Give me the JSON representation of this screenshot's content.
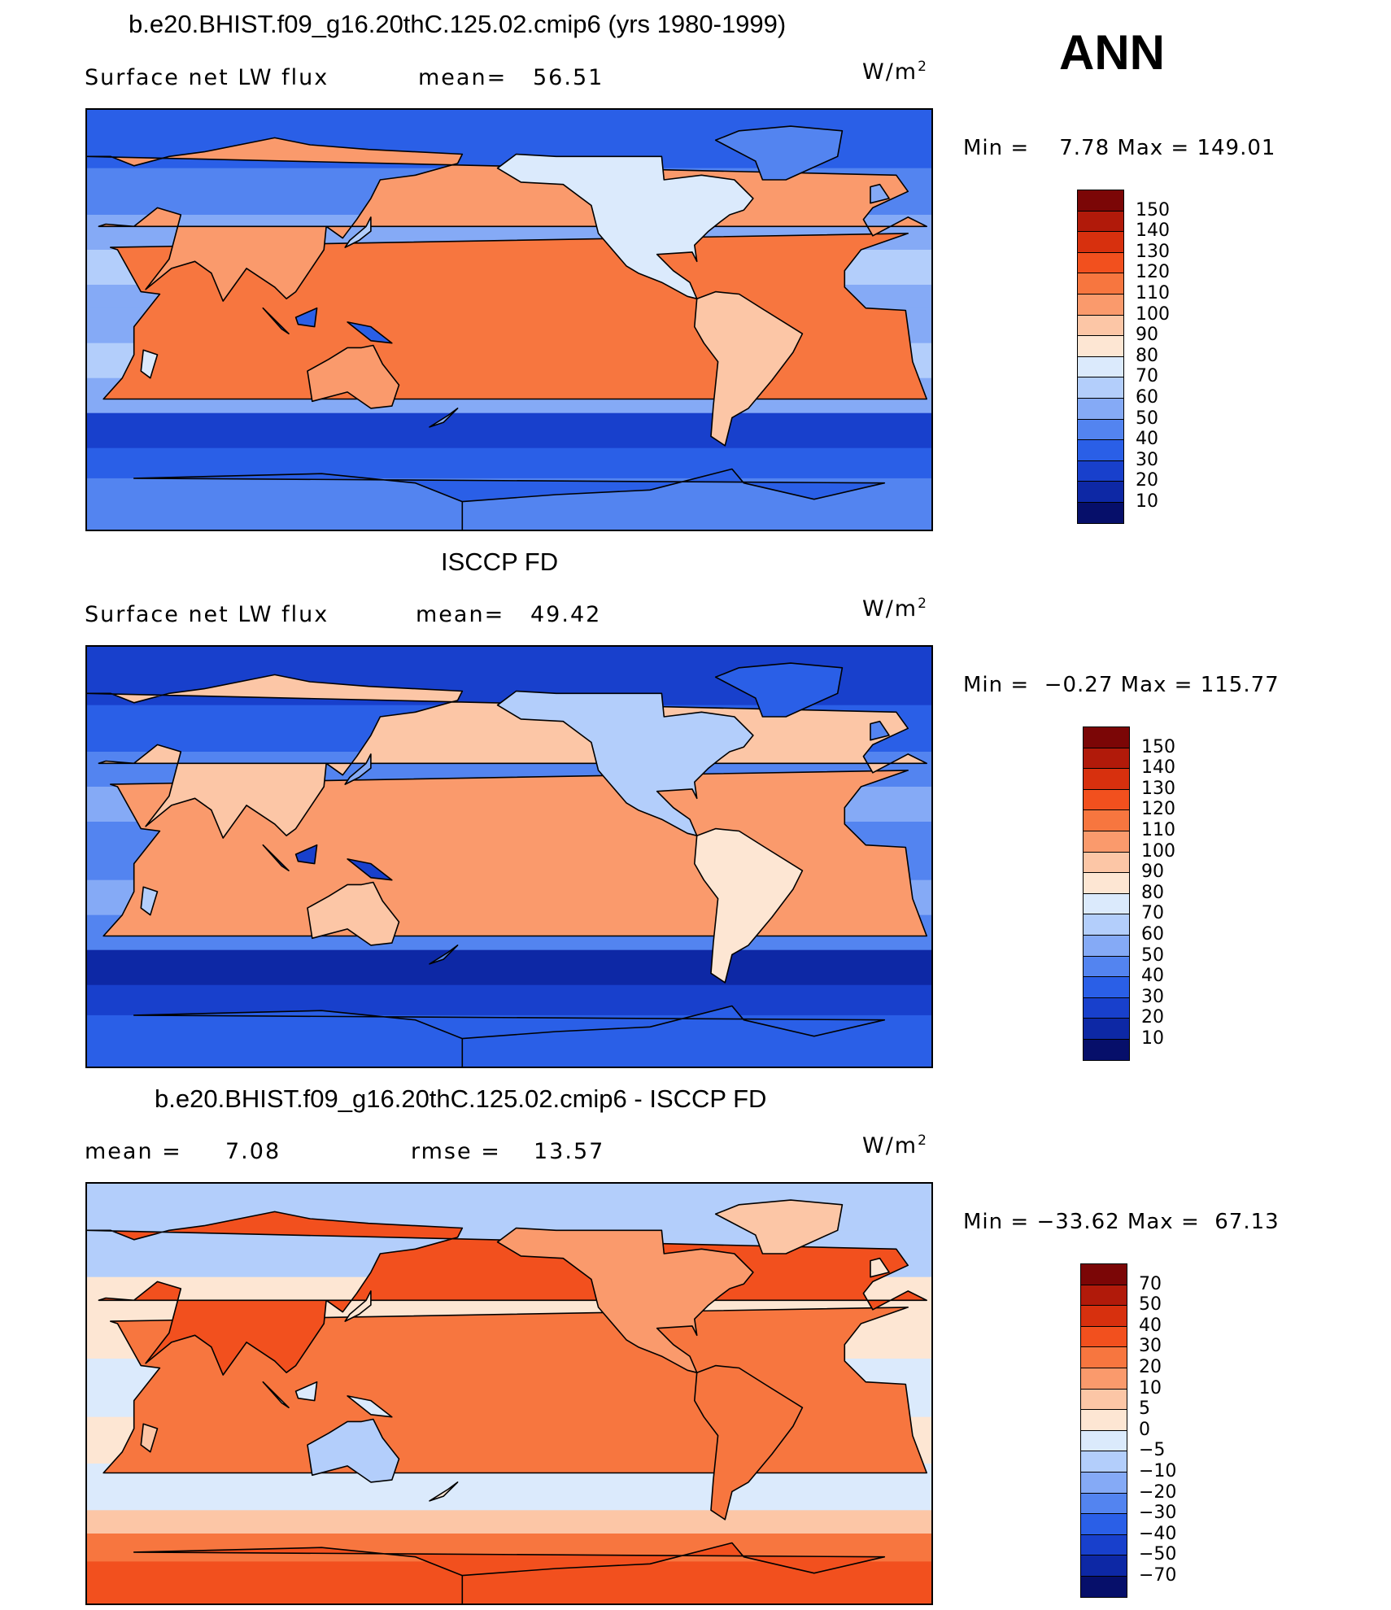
{
  "ann_label": "ANN",
  "panels": [
    {
      "title": "b.e20.BHIST.f09_g16.20thC.125.02.cmip6 (yrs 1980-1999)",
      "sub_left_label": "Surface net LW flux",
      "sub_mid_label": "mean=",
      "sub_mid_value": "56.51",
      "units": "W/m",
      "units_exp": "2",
      "minmax": "Min =    7.78 Max = 149.01",
      "palette": "absolute",
      "field_bias": 0,
      "levels": [
        "150",
        "140",
        "130",
        "120",
        "110",
        "100",
        "90",
        "80",
        "70",
        "60",
        "50",
        "40",
        "30",
        "20",
        "10"
      ]
    },
    {
      "title": "ISCCP FD",
      "sub_left_label": "Surface net LW flux",
      "sub_mid_label": "mean=",
      "sub_mid_value": "49.42",
      "units": "W/m",
      "units_exp": "2",
      "minmax": "Min =  −0.27 Max = 115.77",
      "palette": "absolute",
      "field_bias": -1,
      "levels": [
        "150",
        "140",
        "130",
        "120",
        "110",
        "100",
        "90",
        "80",
        "70",
        "60",
        "50",
        "40",
        "30",
        "20",
        "10"
      ]
    },
    {
      "title": "b.e20.BHIST.f09_g16.20thC.125.02.cmip6 - ISCCP FD",
      "sub_left_label": "mean =",
      "sub_left_value": "7.08",
      "sub_mid_label": "rmse =",
      "sub_mid_value": "13.57",
      "units": "W/m",
      "units_exp": "2",
      "minmax": "Min = −33.62 Max =  67.13",
      "palette": "difference",
      "field_bias": 0,
      "levels": [
        "70",
        "50",
        "40",
        "30",
        "20",
        "10",
        "5",
        "0",
        "−5",
        "−10",
        "−20",
        "−30",
        "−40",
        "−50",
        "−70"
      ]
    }
  ],
  "colors": {
    "absolute": [
      "#7b0606",
      "#b11a0a",
      "#d7300e",
      "#f2501e",
      "#f7763f",
      "#fa9a6c",
      "#fcc6a6",
      "#fde6d3",
      "#dbeafc",
      "#b3cefb",
      "#85aaf6",
      "#5384f0",
      "#2a5fe7",
      "#1840cc",
      "#0d28a5",
      "#060f6a"
    ],
    "difference": [
      "#7b0606",
      "#b11a0a",
      "#d7300e",
      "#f2501e",
      "#f7763f",
      "#fa9a6c",
      "#fcc6a6",
      "#fde6d3",
      "#dbeafc",
      "#b3cefb",
      "#85aaf6",
      "#5384f0",
      "#2a5fe7",
      "#1840cc",
      "#0d28a5",
      "#060f6a"
    ]
  },
  "chart_data": [
    {
      "type": "heatmap",
      "title": "b.e20.BHIST.f09_g16.20thC.125.02.cmip6 (yrs 1980-1999)",
      "variable": "Surface net LW flux",
      "units": "W/m2",
      "mean": 56.51,
      "min": 7.78,
      "max": 149.01,
      "colorbar_levels": [
        10,
        20,
        30,
        40,
        50,
        60,
        70,
        80,
        90,
        100,
        110,
        120,
        130,
        140,
        150
      ]
    },
    {
      "type": "heatmap",
      "title": "ISCCP FD",
      "variable": "Surface net LW flux",
      "units": "W/m2",
      "mean": 49.42,
      "min": -0.27,
      "max": 115.77,
      "colorbar_levels": [
        10,
        20,
        30,
        40,
        50,
        60,
        70,
        80,
        90,
        100,
        110,
        120,
        130,
        140,
        150
      ]
    },
    {
      "type": "heatmap",
      "title": "b.e20.BHIST.f09_g16.20thC.125.02.cmip6 - ISCCP FD",
      "units": "W/m2",
      "mean": 7.08,
      "rmse": 13.57,
      "min": -33.62,
      "max": 67.13,
      "colorbar_levels": [
        -70,
        -50,
        -40,
        -30,
        -20,
        -10,
        -5,
        0,
        5,
        10,
        20,
        30,
        40,
        50,
        70
      ]
    }
  ]
}
